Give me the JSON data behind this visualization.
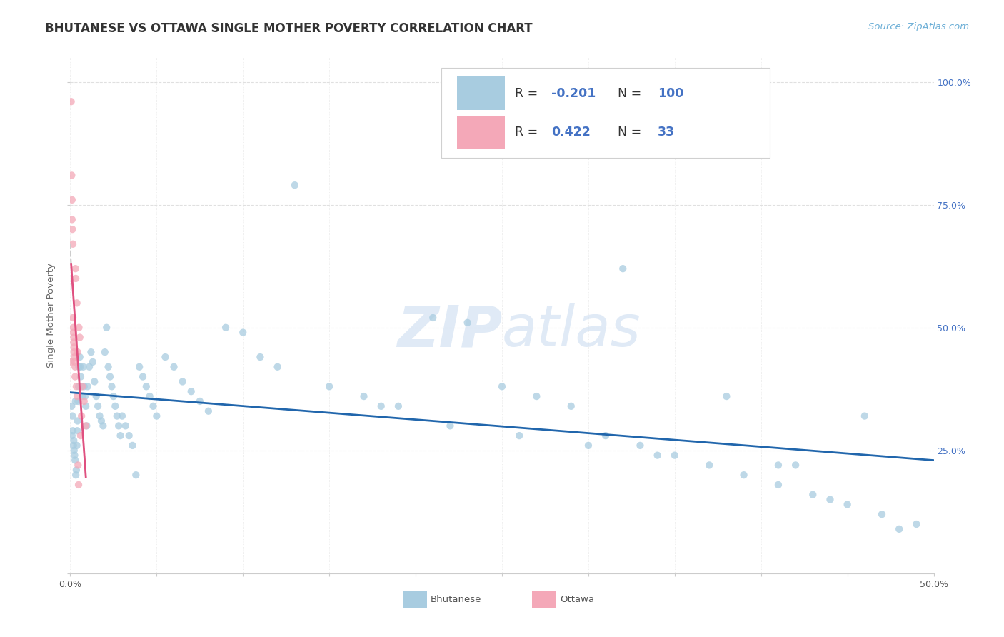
{
  "title": "BHUTANESE VS OTTAWA SINGLE MOTHER POVERTY CORRELATION CHART",
  "source": "Source: ZipAtlas.com",
  "ylabel": "Single Mother Poverty",
  "watermark": "ZIPatlas",
  "legend_blue_R": "-0.201",
  "legend_blue_N": "100",
  "legend_pink_R": "0.422",
  "legend_pink_N": "33",
  "blue_color": "#a8cce0",
  "pink_color": "#f4a8b8",
  "blue_line_color": "#2166ac",
  "pink_line_color": "#e05080",
  "gray_dash_color": "#cccccc",
  "background_color": "#ffffff",
  "grid_color": "#e0e0e0",
  "right_tick_color": "#4472c4",
  "title_color": "#333333",
  "source_color": "#6baed6",
  "ylabel_color": "#666666",
  "scatter_size": 55,
  "scatter_alpha": 0.75,
  "blue_scatter_x": [
    0.0008,
    0.001,
    0.0012,
    0.0015,
    0.0018,
    0.002,
    0.0022,
    0.0025,
    0.0028,
    0.003,
    0.0032,
    0.0035,
    0.0038,
    0.004,
    0.0042,
    0.0045,
    0.0048,
    0.005,
    0.0055,
    0.0058,
    0.006,
    0.0065,
    0.007,
    0.0075,
    0.008,
    0.0085,
    0.009,
    0.0095,
    0.01,
    0.011,
    0.012,
    0.013,
    0.014,
    0.015,
    0.016,
    0.017,
    0.018,
    0.019,
    0.02,
    0.021,
    0.022,
    0.023,
    0.024,
    0.025,
    0.026,
    0.027,
    0.028,
    0.029,
    0.03,
    0.032,
    0.034,
    0.036,
    0.038,
    0.04,
    0.042,
    0.044,
    0.046,
    0.048,
    0.05,
    0.055,
    0.06,
    0.065,
    0.07,
    0.075,
    0.08,
    0.09,
    0.1,
    0.11,
    0.12,
    0.13,
    0.15,
    0.17,
    0.19,
    0.21,
    0.23,
    0.25,
    0.27,
    0.29,
    0.31,
    0.33,
    0.35,
    0.37,
    0.39,
    0.41,
    0.43,
    0.45,
    0.47,
    0.49,
    0.32,
    0.38,
    0.41,
    0.44,
    0.46,
    0.18,
    0.22,
    0.26,
    0.3,
    0.34,
    0.42,
    0.48
  ],
  "blue_scatter_y": [
    0.34,
    0.28,
    0.32,
    0.29,
    0.26,
    0.27,
    0.25,
    0.24,
    0.23,
    0.35,
    0.2,
    0.21,
    0.26,
    0.29,
    0.31,
    0.35,
    0.38,
    0.42,
    0.44,
    0.42,
    0.4,
    0.38,
    0.36,
    0.42,
    0.38,
    0.36,
    0.34,
    0.3,
    0.38,
    0.42,
    0.45,
    0.43,
    0.39,
    0.36,
    0.34,
    0.32,
    0.31,
    0.3,
    0.45,
    0.5,
    0.42,
    0.4,
    0.38,
    0.36,
    0.34,
    0.32,
    0.3,
    0.28,
    0.32,
    0.3,
    0.28,
    0.26,
    0.2,
    0.42,
    0.4,
    0.38,
    0.36,
    0.34,
    0.32,
    0.44,
    0.42,
    0.39,
    0.37,
    0.35,
    0.33,
    0.5,
    0.49,
    0.44,
    0.42,
    0.79,
    0.38,
    0.36,
    0.34,
    0.52,
    0.51,
    0.38,
    0.36,
    0.34,
    0.28,
    0.26,
    0.24,
    0.22,
    0.2,
    0.18,
    0.16,
    0.14,
    0.12,
    0.1,
    0.62,
    0.36,
    0.22,
    0.15,
    0.32,
    0.34,
    0.3,
    0.28,
    0.26,
    0.24,
    0.22,
    0.09
  ],
  "pink_scatter_x": [
    0.0005,
    0.0005,
    0.0008,
    0.001,
    0.001,
    0.0012,
    0.0015,
    0.0015,
    0.0018,
    0.0018,
    0.002,
    0.002,
    0.0022,
    0.0022,
    0.0025,
    0.0025,
    0.0028,
    0.0028,
    0.003,
    0.0032,
    0.0035,
    0.0038,
    0.004,
    0.0042,
    0.0045,
    0.0048,
    0.005,
    0.0055,
    0.006,
    0.0065,
    0.007,
    0.008,
    0.009
  ],
  "pink_scatter_y": [
    0.96,
    0.43,
    0.81,
    0.76,
    0.72,
    0.7,
    0.67,
    0.52,
    0.5,
    0.49,
    0.48,
    0.47,
    0.46,
    0.45,
    0.44,
    0.43,
    0.42,
    0.4,
    0.62,
    0.6,
    0.38,
    0.55,
    0.36,
    0.45,
    0.22,
    0.18,
    0.5,
    0.48,
    0.28,
    0.32,
    0.38,
    0.35,
    0.3
  ],
  "xlim": [
    0.0,
    0.5
  ],
  "ylim": [
    0.0,
    1.05
  ],
  "ytick_vals": [
    0.0,
    0.25,
    0.5,
    0.75,
    1.0
  ],
  "right_ytick_labels": [
    "100.0%",
    "75.0%",
    "50.0%",
    "25.0%"
  ],
  "right_ytick_vals": [
    1.0,
    0.75,
    0.5,
    0.25
  ]
}
